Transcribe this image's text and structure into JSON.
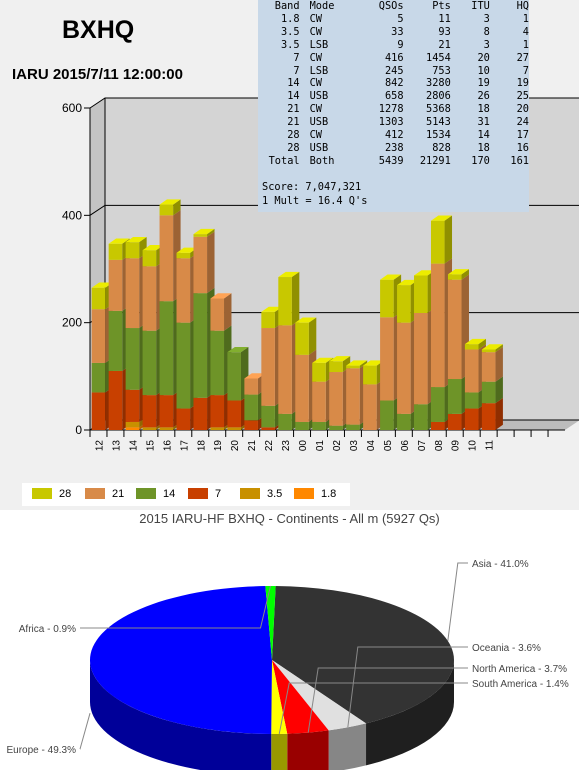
{
  "header": {
    "callsign": "BXHQ",
    "contest": "IARU 2015/7/11 12:00:00"
  },
  "summary": {
    "headers": [
      "Band",
      "Mode",
      "QSOs",
      "Pts",
      "ITU",
      "HQ"
    ],
    "rows": [
      [
        "1.8",
        "CW",
        "5",
        "11",
        "3",
        "1"
      ],
      [
        "3.5",
        "CW",
        "33",
        "93",
        "8",
        "4"
      ],
      [
        "3.5",
        "LSB",
        "9",
        "21",
        "3",
        "1"
      ],
      [
        "7",
        "CW",
        "416",
        "1454",
        "20",
        "27"
      ],
      [
        "7",
        "LSB",
        "245",
        "753",
        "10",
        "7"
      ],
      [
        "14",
        "CW",
        "842",
        "3280",
        "19",
        "19"
      ],
      [
        "14",
        "USB",
        "658",
        "2806",
        "26",
        "25"
      ],
      [
        "21",
        "CW",
        "1278",
        "5368",
        "18",
        "20"
      ],
      [
        "21",
        "USB",
        "1303",
        "5143",
        "31",
        "24"
      ],
      [
        "28",
        "CW",
        "412",
        "1534",
        "14",
        "17"
      ],
      [
        "28",
        "USB",
        "238",
        "828",
        "18",
        "16"
      ],
      [
        "Total",
        "Both",
        "5439",
        "21291",
        "170",
        "161"
      ]
    ],
    "score": "Score: 7,047,321",
    "mult": "1 Mult = 16.4 Q's"
  },
  "colors": {
    "28": "#c8c800",
    "21": "#d88a48",
    "14": "#6e9428",
    "7": "#c84000",
    "3.5": "#c89000",
    "1.8": "#ff8800"
  },
  "legend": [
    "28",
    "21",
    "14",
    "7",
    "3.5",
    "1.8"
  ],
  "pie_title": "2015 IARU-HF BXHQ - Continents - All m (5927 Qs)",
  "chart_data": [
    {
      "type": "bar",
      "stacked": true,
      "ylim": [
        0,
        600
      ],
      "yticks": [
        "0",
        "200",
        "400",
        "600"
      ],
      "grid": true,
      "legend_position": "bottom",
      "categories": [
        "12",
        "13",
        "14",
        "15",
        "16",
        "17",
        "18",
        "19",
        "20",
        "21",
        "22",
        "23",
        "00",
        "01",
        "02",
        "03",
        "04",
        "05",
        "06",
        "07",
        "08",
        "09",
        "10",
        "11",
        "",
        "",
        "",
        ""
      ],
      "series": [
        {
          "name": "1.8",
          "values": [
            0,
            0,
            5,
            0,
            0,
            0,
            0,
            0,
            0,
            0,
            0,
            0,
            0,
            0,
            0,
            0,
            0,
            0,
            0,
            0,
            0,
            0,
            0,
            0,
            0,
            0,
            0,
            0
          ]
        },
        {
          "name": "3.5",
          "values": [
            0,
            0,
            10,
            5,
            5,
            0,
            0,
            5,
            5,
            0,
            0,
            0,
            0,
            0,
            0,
            0,
            0,
            0,
            0,
            0,
            0,
            0,
            0,
            0,
            0,
            0,
            0,
            0
          ]
        },
        {
          "name": "7",
          "values": [
            70,
            110,
            60,
            60,
            60,
            40,
            60,
            60,
            50,
            18,
            5,
            0,
            0,
            0,
            0,
            0,
            0,
            0,
            0,
            0,
            15,
            30,
            40,
            50,
            0,
            0,
            0,
            0
          ]
        },
        {
          "name": "14",
          "values": [
            55,
            112,
            115,
            120,
            175,
            160,
            195,
            120,
            90,
            48,
            40,
            30,
            15,
            15,
            8,
            10,
            0,
            55,
            30,
            48,
            65,
            65,
            30,
            40,
            0,
            0,
            0,
            0
          ]
        },
        {
          "name": "21",
          "values": [
            100,
            95,
            130,
            120,
            160,
            120,
            105,
            60,
            0,
            30,
            145,
            165,
            125,
            75,
            100,
            105,
            85,
            155,
            170,
            170,
            230,
            185,
            80,
            55,
            0,
            0,
            0,
            0
          ]
        },
        {
          "name": "28",
          "values": [
            40,
            30,
            30,
            30,
            20,
            10,
            5,
            0,
            0,
            0,
            30,
            90,
            60,
            35,
            20,
            5,
            35,
            70,
            70,
            70,
            80,
            10,
            10,
            5,
            0,
            0,
            0,
            0
          ]
        }
      ]
    },
    {
      "type": "pie",
      "title": "2015 IARU-HF BXHQ - Continents - All m (5927 Qs)",
      "slices": [
        {
          "label": "Asia - 41.0%",
          "value": 41.0,
          "color": "#333333"
        },
        {
          "label": "Oceania - 3.6%",
          "value": 3.6,
          "color": "#e0e0e0"
        },
        {
          "label": "North America - 3.7%",
          "value": 3.7,
          "color": "#ff0000"
        },
        {
          "label": "South America - 1.4%",
          "value": 1.4,
          "color": "#ffff00"
        },
        {
          "label": "Europe - 49.3%",
          "value": 49.3,
          "color": "#0000ff"
        },
        {
          "label": "Africa - 0.9%",
          "value": 0.9,
          "color": "#00ff00"
        }
      ]
    }
  ]
}
